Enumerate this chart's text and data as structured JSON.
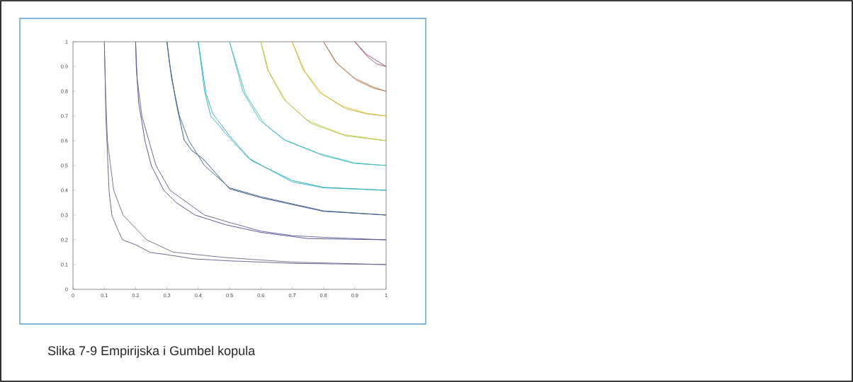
{
  "chart_data": {
    "type": "line",
    "xlim": [
      0,
      1
    ],
    "ylim": [
      0,
      1
    ],
    "xticks": [
      0,
      0.1,
      0.2,
      0.3,
      0.4,
      0.5,
      0.6,
      0.7,
      0.8,
      0.9,
      1
    ],
    "yticks": [
      0,
      0.1,
      0.2,
      0.3,
      0.4,
      0.5,
      0.6,
      0.7,
      0.8,
      0.9,
      1
    ],
    "annotations": [
      "Slika 7-9 Empirijska i Gumbel kopula"
    ],
    "series": [
      {
        "color": "#5a5a8a",
        "x": [
          0.1,
          0.102,
          0.105,
          0.11,
          0.115,
          0.124,
          0.14,
          0.158,
          0.2,
          0.247,
          0.3,
          0.385,
          0.5,
          0.7,
          1
        ],
        "values": [
          1,
          0.9,
          0.7,
          0.55,
          0.4,
          0.3,
          0.25,
          0.2,
          0.18,
          0.149,
          0.14,
          0.123,
          0.115,
          0.105,
          0.1
        ]
      },
      {
        "color": "#6a6a8a",
        "x": [
          0.1,
          0.104,
          0.11,
          0.13,
          0.16,
          0.235,
          0.32,
          0.49,
          0.7,
          1
        ],
        "values": [
          1,
          0.8,
          0.6,
          0.4,
          0.3,
          0.2,
          0.15,
          0.128,
          0.11,
          0.1
        ]
      },
      {
        "color": "#4a4a90",
        "x": [
          0.2,
          0.202,
          0.21,
          0.23,
          0.25,
          0.29,
          0.33,
          0.39,
          0.49,
          0.6,
          0.75,
          1
        ],
        "values": [
          1,
          0.9,
          0.75,
          0.6,
          0.5,
          0.4,
          0.35,
          0.3,
          0.26,
          0.23,
          0.205,
          0.2
        ]
      },
      {
        "color": "#5a5a98",
        "x": [
          0.2,
          0.205,
          0.22,
          0.265,
          0.31,
          0.42,
          0.5,
          0.6,
          0.7,
          0.8,
          1
        ],
        "values": [
          1,
          0.85,
          0.7,
          0.5,
          0.4,
          0.3,
          0.27,
          0.235,
          0.217,
          0.21,
          0.2
        ]
      },
      {
        "color": "#2a4a78",
        "x": [
          0.3,
          0.31,
          0.33,
          0.355,
          0.38,
          0.416,
          0.5,
          0.6,
          0.8,
          1
        ],
        "values": [
          1,
          0.9,
          0.75,
          0.603,
          0.56,
          0.526,
          0.406,
          0.37,
          0.315,
          0.3
        ]
      },
      {
        "color": "#3a6088",
        "x": [
          0.3,
          0.315,
          0.34,
          0.37,
          0.42,
          0.5,
          0.6,
          0.8,
          1
        ],
        "values": [
          1,
          0.85,
          0.7,
          0.6,
          0.5,
          0.41,
          0.374,
          0.317,
          0.3
        ]
      },
      {
        "color": "#30b0c0",
        "x": [
          0.4,
          0.42,
          0.44,
          0.49,
          0.56,
          0.7,
          0.8,
          1
        ],
        "values": [
          1,
          0.8,
          0.7,
          0.626,
          0.53,
          0.434,
          0.41,
          0.4
        ]
      },
      {
        "color": "#28a8b8",
        "x": [
          0.4,
          0.425,
          0.446,
          0.5,
          0.57,
          0.7,
          0.8,
          1
        ],
        "values": [
          1,
          0.79,
          0.71,
          0.62,
          0.52,
          0.44,
          0.412,
          0.4
        ]
      },
      {
        "color": "#40c0c0",
        "x": [
          0.5,
          0.543,
          0.597,
          0.672,
          0.785,
          0.898,
          1
        ],
        "values": [
          1,
          0.797,
          0.683,
          0.606,
          0.549,
          0.511,
          0.5
        ]
      },
      {
        "color": "#48b8b8",
        "x": [
          0.5,
          0.55,
          0.61,
          0.68,
          0.8,
          0.9,
          1
        ],
        "values": [
          1,
          0.79,
          0.67,
          0.6,
          0.54,
          0.508,
          0.5
        ]
      },
      {
        "color": "#b8d040",
        "x": [
          0.6,
          0.62,
          0.672,
          0.747,
          0.86,
          1
        ],
        "values": [
          1,
          0.89,
          0.769,
          0.683,
          0.626,
          0.6
        ]
      },
      {
        "color": "#a8c848",
        "x": [
          0.6,
          0.625,
          0.68,
          0.76,
          0.87,
          1
        ],
        "values": [
          1,
          0.88,
          0.76,
          0.67,
          0.62,
          0.6
        ]
      },
      {
        "color": "#d8c030",
        "x": [
          0.7,
          0.733,
          0.785,
          0.86,
          0.937,
          1
        ],
        "values": [
          1,
          0.891,
          0.797,
          0.74,
          0.711,
          0.7
        ]
      },
      {
        "color": "#c8b038",
        "x": [
          0.7,
          0.74,
          0.795,
          0.87,
          0.94,
          1
        ],
        "values": [
          1,
          0.88,
          0.79,
          0.73,
          0.708,
          0.7
        ]
      },
      {
        "color": "#c08050",
        "x": [
          0.8,
          0.837,
          0.898,
          0.959,
          1
        ],
        "values": [
          1,
          0.92,
          0.854,
          0.817,
          0.8
        ]
      },
      {
        "color": "#b07858",
        "x": [
          0.8,
          0.845,
          0.905,
          0.96,
          1
        ],
        "values": [
          1,
          0.91,
          0.845,
          0.812,
          0.8
        ]
      },
      {
        "color": "#a04060",
        "x": [
          0.9,
          0.937,
          1
        ],
        "values": [
          1,
          0.949,
          0.9
        ]
      },
      {
        "color": "#985068",
        "x": [
          0.9,
          0.94,
          0.97,
          1
        ],
        "values": [
          1,
          0.94,
          0.91,
          0.9
        ]
      }
    ]
  }
}
